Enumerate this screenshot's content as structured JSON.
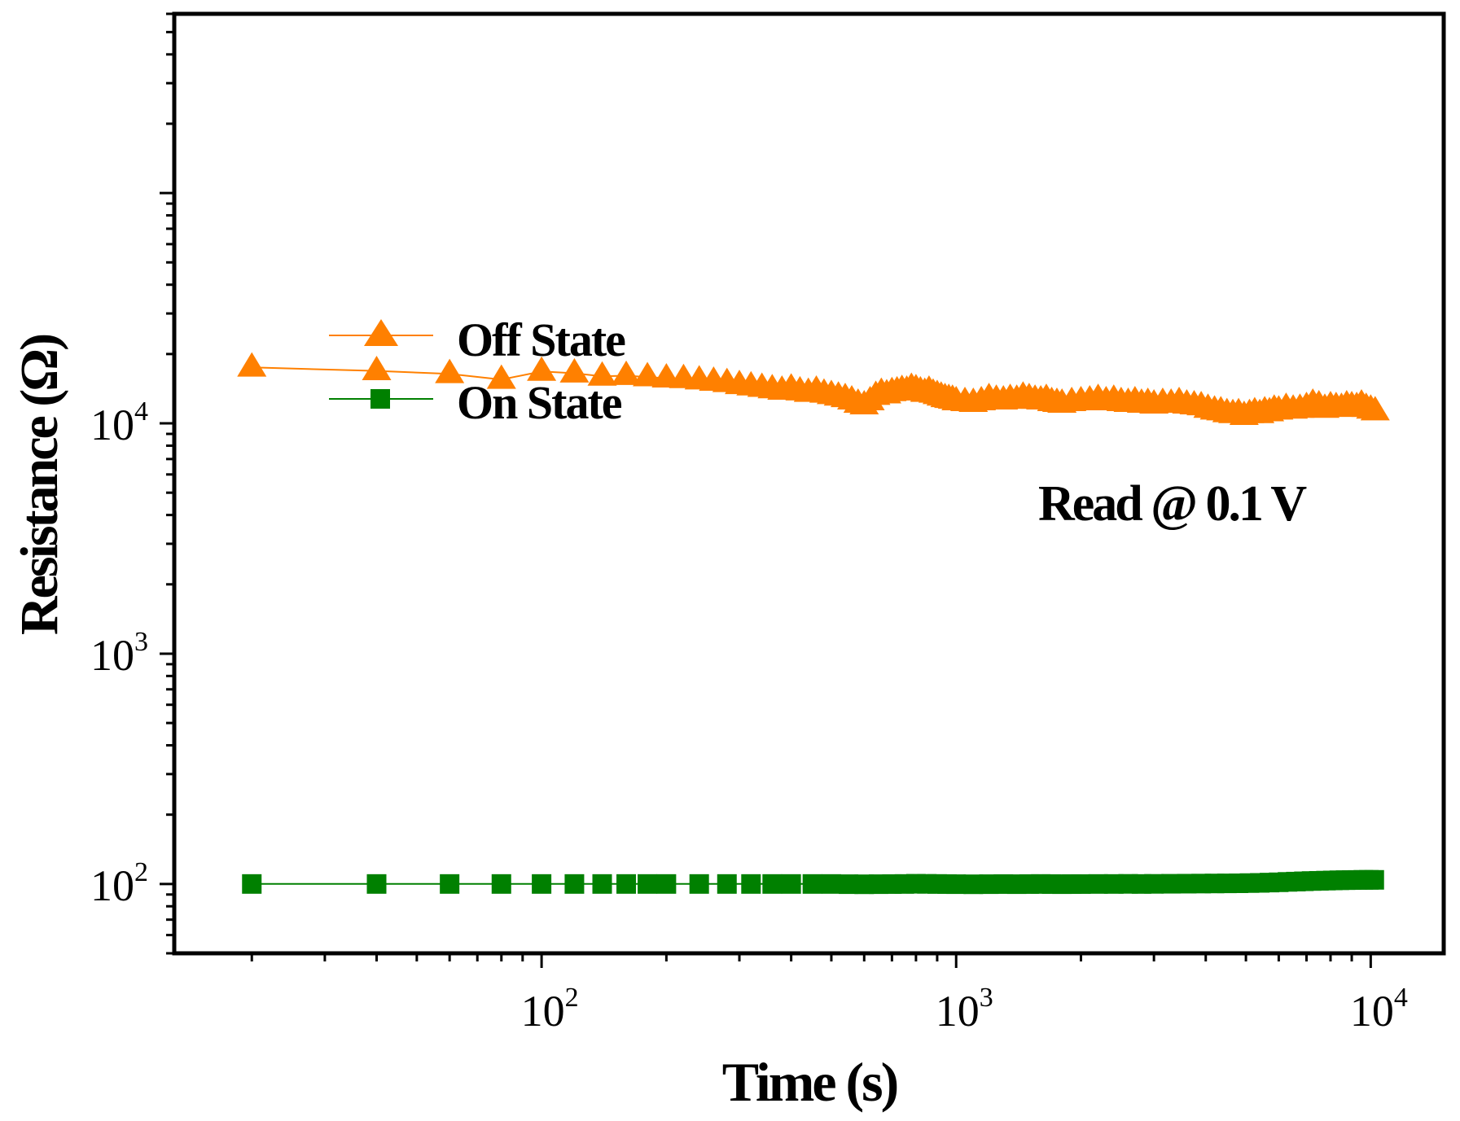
{
  "chart_data": {
    "type": "line",
    "xscale": "log",
    "yscale": "log",
    "xlabel": "Time (s)",
    "ylabel": "Resistance (Ω)",
    "xlim": [
      13,
      15000
    ],
    "ylim": [
      50,
      600000
    ],
    "x_ticks": [
      {
        "value": 100,
        "base": "10",
        "exp": "2"
      },
      {
        "value": 1000,
        "base": "10",
        "exp": "3"
      },
      {
        "value": 10000,
        "base": "10",
        "exp": "4"
      }
    ],
    "y_ticks": [
      {
        "value": 100,
        "base": "10",
        "exp": "2"
      },
      {
        "value": 1000,
        "base": "10",
        "exp": "3"
      },
      {
        "value": 10000,
        "base": "10",
        "exp": "4"
      }
    ],
    "annotation": "Read @ 0.1 V",
    "series": [
      {
        "name": "Off State",
        "color": "#ff8000",
        "marker": "triangle",
        "x": [
          20,
          40,
          60,
          80,
          100,
          120,
          140,
          160,
          180,
          200,
          220,
          240,
          260,
          280,
          300,
          320,
          340,
          360,
          380,
          400,
          420,
          440,
          460,
          480,
          500,
          520,
          540,
          560,
          580,
          600,
          620,
          640,
          660,
          680,
          700,
          720,
          740,
          760,
          780,
          800,
          820,
          840,
          860,
          880,
          900,
          920,
          940,
          960,
          980,
          1000,
          1050,
          1100,
          1150,
          1200,
          1250,
          1300,
          1350,
          1400,
          1450,
          1500,
          1550,
          1600,
          1650,
          1700,
          1750,
          1800,
          1900,
          2000,
          2100,
          2200,
          2300,
          2400,
          2500,
          2600,
          2700,
          2800,
          2900,
          3000,
          3150,
          3300,
          3450,
          3600,
          3750,
          3900,
          4050,
          4200,
          4350,
          4500,
          4650,
          4800,
          4950,
          5100,
          5250,
          5400,
          5550,
          5700,
          5850,
          6000,
          6250,
          6500,
          6750,
          7000,
          7250,
          7500,
          7750,
          8000,
          8250,
          8500,
          8750,
          9000,
          9250,
          9500,
          9750,
          10000,
          10250
        ],
        "y": [
          17500,
          16900,
          16400,
          15500,
          16800,
          16500,
          16000,
          16100,
          15900,
          15700,
          15600,
          15400,
          15200,
          15000,
          14700,
          14500,
          14300,
          14100,
          13900,
          14200,
          13800,
          13600,
          13900,
          13500,
          13300,
          13100,
          12900,
          12600,
          12200,
          12000,
          12500,
          13200,
          13600,
          13400,
          13700,
          13800,
          14000,
          13900,
          14300,
          14100,
          13800,
          13600,
          13900,
          13500,
          13300,
          13100,
          12900,
          12800,
          12700,
          12500,
          12400,
          12300,
          12500,
          12900,
          12700,
          12600,
          12800,
          12700,
          13100,
          12900,
          12700,
          12600,
          12800,
          12400,
          12300,
          12200,
          12400,
          12500,
          12600,
          12800,
          12500,
          12700,
          12400,
          12300,
          12500,
          12200,
          12300,
          12100,
          12300,
          12200,
          12400,
          12100,
          12000,
          11900,
          11600,
          11400,
          11300,
          11100,
          11000,
          11100,
          10800,
          11000,
          11200,
          11000,
          11300,
          11200,
          11500,
          11400,
          11700,
          11500,
          11600,
          11800,
          12200,
          12000,
          11600,
          11900,
          11800,
          11700,
          12000,
          11900,
          11800,
          12100,
          11700,
          11500,
          11300
        ]
      },
      {
        "name": "On State",
        "color": "#008000",
        "marker": "square",
        "x": [
          20,
          40,
          60,
          80,
          100,
          120,
          140,
          160,
          180,
          200,
          240,
          280,
          320,
          360,
          400,
          450,
          500,
          550,
          600,
          650,
          700,
          750,
          800,
          850,
          900,
          950,
          1000,
          1100,
          1200,
          1300,
          1400,
          1500,
          1600,
          1700,
          1800,
          1900,
          2000,
          2200,
          2400,
          2600,
          2800,
          3000,
          3300,
          3600,
          3900,
          4200,
          4500,
          4800,
          5100,
          5400,
          5700,
          6000,
          6300,
          6600,
          6900,
          7200,
          7500,
          7800,
          8100,
          8400,
          8700,
          9000,
          9300,
          9600,
          9900,
          10200
        ],
        "y": [
          100,
          100,
          100,
          100,
          100,
          100,
          100,
          100,
          100,
          100,
          100,
          100,
          100,
          100,
          100,
          100,
          100,
          99.8,
          99.7,
          99.8,
          99.9,
          100,
          100.2,
          100.1,
          100,
          99.9,
          99.8,
          99.7,
          99.8,
          99.9,
          99.8,
          99.9,
          100,
          99.9,
          99.8,
          99.9,
          99.9,
          100,
          100,
          100.1,
          100,
          100.1,
          100.2,
          100.3,
          100.4,
          100.5,
          100.6,
          100.7,
          100.9,
          101.1,
          101.4,
          101.7,
          102.1,
          102.4,
          102.7,
          103.0,
          103.2,
          103.4,
          103.6,
          103.8,
          103.9,
          104.0,
          104.1,
          104.2,
          104.2,
          104.2
        ]
      }
    ]
  }
}
